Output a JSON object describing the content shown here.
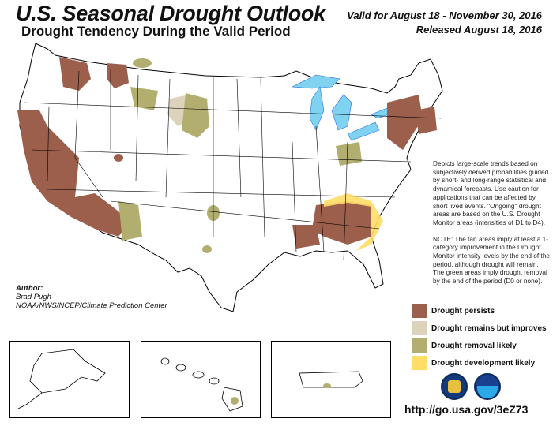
{
  "header": {
    "title": "U.S. Seasonal Drought Outlook",
    "subtitle": "Drought Tendency During the Valid Period",
    "valid": "Valid for August 18 - November 30, 2016",
    "released": "Released August 18, 2016"
  },
  "description": {
    "para1": "Depicts large-scale trends based on subjectively derived probabilities guided by short- and long-range statistical and dynamical forecasts. Use caution for applications that can be affected by short lived events. \"Ongoing\" drought areas are based on the U.S. Drought Monitor areas (intensities of D1 to D4).",
    "para2": "NOTE: The tan areas imply at least a 1-category improvement in the Drought Monitor intensity levels by the end of the period, although drought will remain. The green areas imply drought removal by the end of the period (D0 or none)."
  },
  "author": {
    "label": "Author:",
    "name": "Brad Pugh",
    "org": "NOAA/NWS/NCEP/Climate Prediction Center"
  },
  "legend": [
    {
      "label": "Drought persists",
      "color": "#9b5f4b"
    },
    {
      "label": "Drought remains but improves",
      "color": "#ddd3bd"
    },
    {
      "label": "Drought removal likely",
      "color": "#b2ae70"
    },
    {
      "label": "Drought development likely",
      "color": "#ffdd66"
    }
  ],
  "colors": {
    "water": "#7fd2f0",
    "rivers": "#3a7cff",
    "border": "#000000"
  },
  "logos": [
    "doc-seal-icon",
    "noaa-logo-icon"
  ],
  "url": "http://go.usa.gov/3eZ73"
}
